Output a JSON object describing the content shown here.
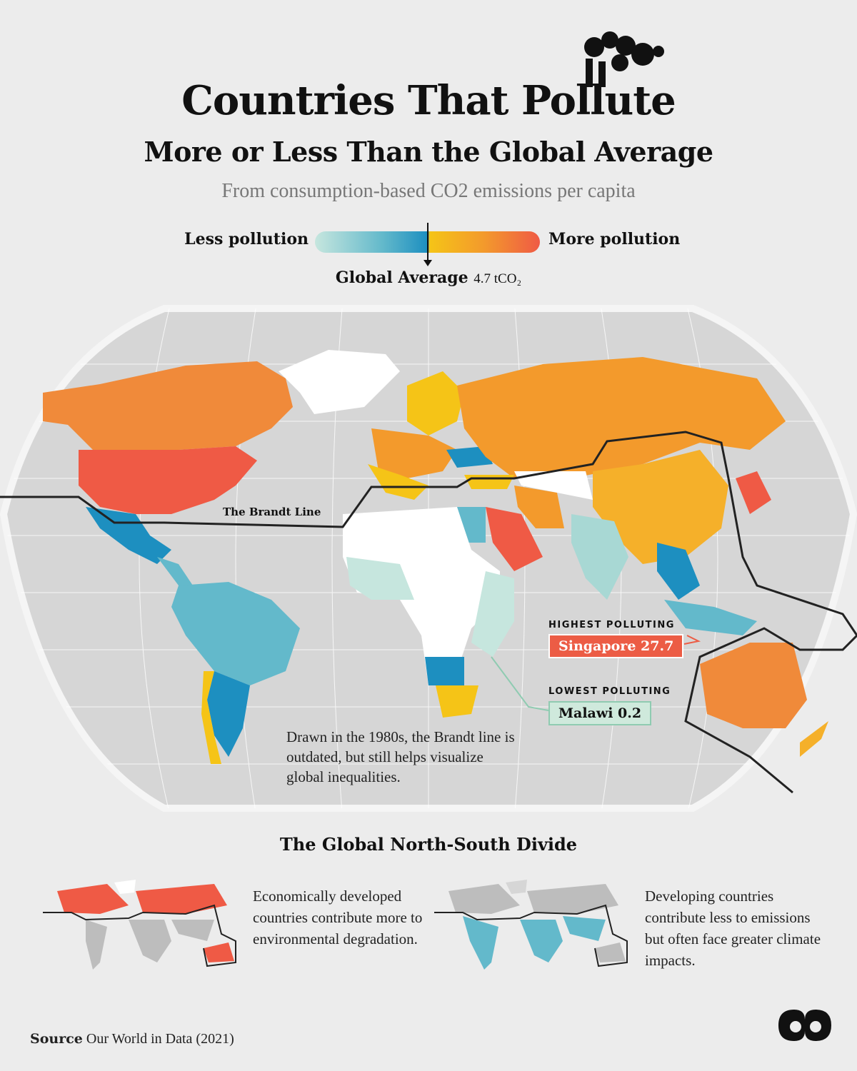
{
  "header": {
    "title_line1": "Countries That Pollute",
    "title_line2": "More or Less Than the Global Average",
    "subtitle": "From consumption-based CO2 emissions per capita"
  },
  "legend": {
    "less_label": "Less pollution",
    "more_label": "More pollution",
    "average_label": "Global Average",
    "average_value": "4.7 tCO₂",
    "gradient_colors": [
      "#c6e6de",
      "#63b9cb",
      "#1d8fc0",
      "#f5c417",
      "#f39a2c",
      "#ef5a45"
    ]
  },
  "map": {
    "brandt_line_label": "The Brandt Line",
    "note": "Drawn in the 1980s, the Brandt line is outdated, but still helps visualize global inequalities.",
    "highest": {
      "caption": "HIGHEST POLLUTING",
      "label": "Singapore 27.7",
      "color": "#ec5c45"
    },
    "lowest": {
      "caption": "LOWEST POLLUTING",
      "label": "Malawi 0.2",
      "color": "#cfe9dc"
    }
  },
  "divide": {
    "heading": "The Global North-South Divide",
    "north_text": "Economically developed countries contribute more to environmental degradation.",
    "south_text": "Developing countries contribute less to emissions but often face greater climate impacts."
  },
  "footer": {
    "source_label": "Source",
    "source_text": "Our World in Data (2021)"
  }
}
